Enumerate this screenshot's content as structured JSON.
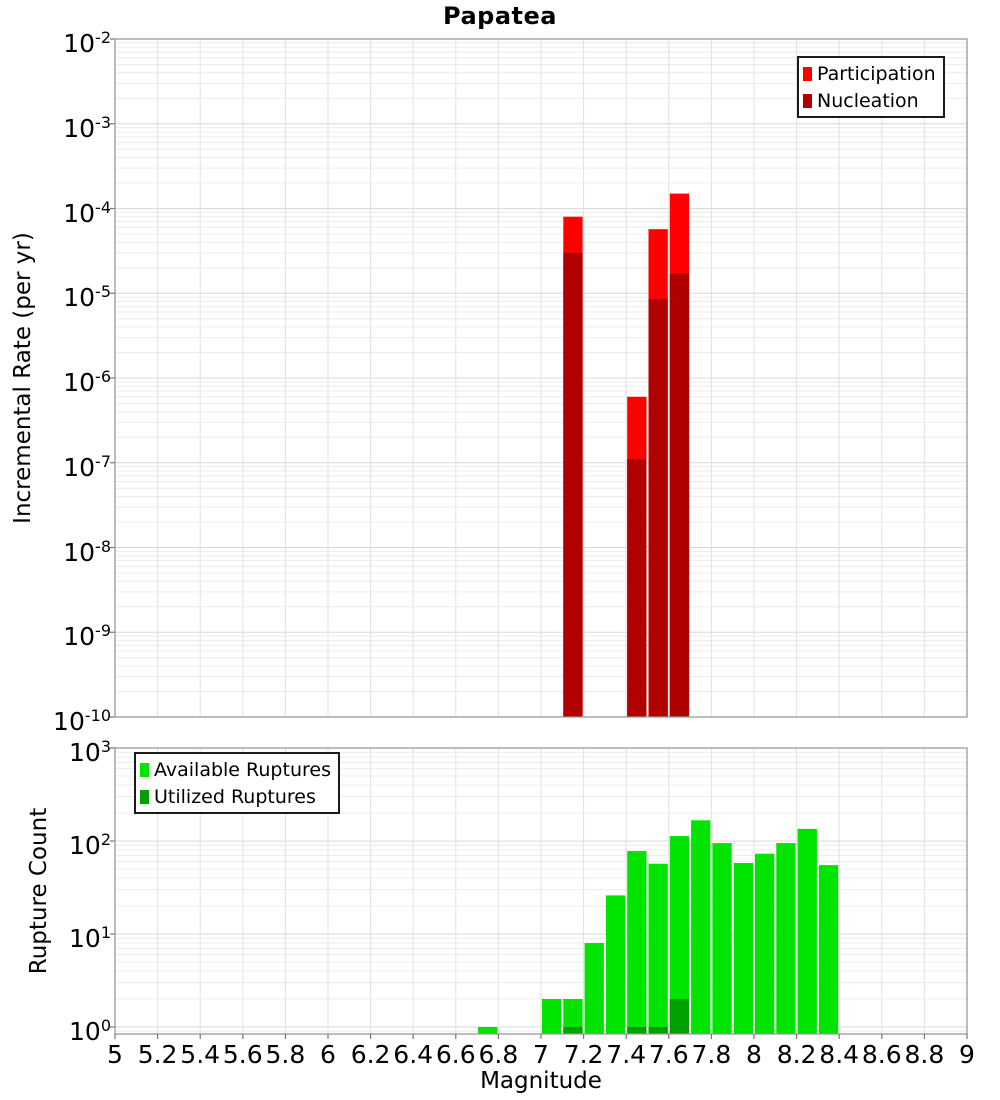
{
  "title": "Papatea",
  "axes": {
    "x_label": "Magnitude",
    "x_ticks": [
      "5",
      "5.2",
      "5.4",
      "5.6",
      "5.8",
      "6",
      "6.2",
      "6.4",
      "6.6",
      "6.8",
      "7",
      "7.2",
      "7.4",
      "7.6",
      "7.8",
      "8",
      "8.2",
      "8.4",
      "8.6",
      "8.8",
      "9"
    ],
    "top_y_label": "Incremental Rate (per yr)",
    "top_y_tick_exponents": [
      -2,
      -3,
      -4,
      -5,
      -6,
      -7,
      -8,
      -9,
      -10
    ],
    "bottom_y_label": "Rupture Count",
    "bottom_y_tick_exponents": [
      3,
      2,
      1,
      0
    ]
  },
  "colors": {
    "participation": "#ff0000",
    "nucleation": "#b00000",
    "available": "#00e400",
    "utilized": "#00a000",
    "grid_major": "#d9d9d9",
    "grid_minor": "#ececec",
    "grid_vertical": "#e2e2e2",
    "plot_border": "#999999",
    "tick_mark": "#777777"
  },
  "legend_top": {
    "items": [
      {
        "label": "Participation",
        "color": "#ff0000"
      },
      {
        "label": "Nucleation",
        "color": "#b00000"
      }
    ]
  },
  "legend_bottom": {
    "items": [
      {
        "label": "Available Ruptures",
        "color": "#00e400"
      },
      {
        "label": "Utilized Ruptures",
        "color": "#00a000"
      }
    ]
  },
  "chart_data": [
    {
      "type": "bar",
      "panel": "top",
      "title": "Papatea",
      "xlabel": "Magnitude",
      "ylabel": "Incremental Rate (per yr)",
      "yscale": "log",
      "ylim": [
        1e-10,
        0.01
      ],
      "xlim": [
        5,
        9
      ],
      "bin_width": 0.1,
      "grid": true,
      "legend_position": "top-right",
      "series": [
        {
          "name": "Participation",
          "color": "#ff0000",
          "points": [
            {
              "bin_start": 7.1,
              "value": 8e-05
            },
            {
              "bin_start": 7.4,
              "value": 6e-07
            },
            {
              "bin_start": 7.5,
              "value": 5.7e-05
            },
            {
              "bin_start": 7.6,
              "value": 0.00015
            }
          ]
        },
        {
          "name": "Nucleation",
          "color": "#b00000",
          "points": [
            {
              "bin_start": 7.1,
              "value": 3e-05
            },
            {
              "bin_start": 7.4,
              "value": 1.1e-07
            },
            {
              "bin_start": 7.5,
              "value": 8.5e-06
            },
            {
              "bin_start": 7.6,
              "value": 1.7e-05
            }
          ]
        }
      ]
    },
    {
      "type": "bar",
      "panel": "bottom",
      "xlabel": "Magnitude",
      "ylabel": "Rupture Count",
      "yscale": "log",
      "ylim": [
        0.84,
        1000
      ],
      "xlim": [
        5,
        9
      ],
      "bin_width": 0.1,
      "grid": true,
      "legend_position": "top-left",
      "series": [
        {
          "name": "Available Ruptures",
          "color": "#00e400",
          "points": [
            {
              "bin_start": 6.7,
              "value": 1
            },
            {
              "bin_start": 7.0,
              "value": 2
            },
            {
              "bin_start": 7.1,
              "value": 2
            },
            {
              "bin_start": 7.2,
              "value": 8
            },
            {
              "bin_start": 7.3,
              "value": 26
            },
            {
              "bin_start": 7.4,
              "value": 78
            },
            {
              "bin_start": 7.5,
              "value": 57
            },
            {
              "bin_start": 7.6,
              "value": 113
            },
            {
              "bin_start": 7.7,
              "value": 167
            },
            {
              "bin_start": 7.8,
              "value": 95
            },
            {
              "bin_start": 7.9,
              "value": 58
            },
            {
              "bin_start": 8.0,
              "value": 73
            },
            {
              "bin_start": 8.1,
              "value": 95
            },
            {
              "bin_start": 8.2,
              "value": 135
            },
            {
              "bin_start": 8.3,
              "value": 55
            }
          ]
        },
        {
          "name": "Utilized Ruptures",
          "color": "#00a000",
          "points": [
            {
              "bin_start": 7.1,
              "value": 1
            },
            {
              "bin_start": 7.4,
              "value": 1
            },
            {
              "bin_start": 7.5,
              "value": 1
            },
            {
              "bin_start": 7.6,
              "value": 2
            }
          ]
        }
      ]
    }
  ]
}
